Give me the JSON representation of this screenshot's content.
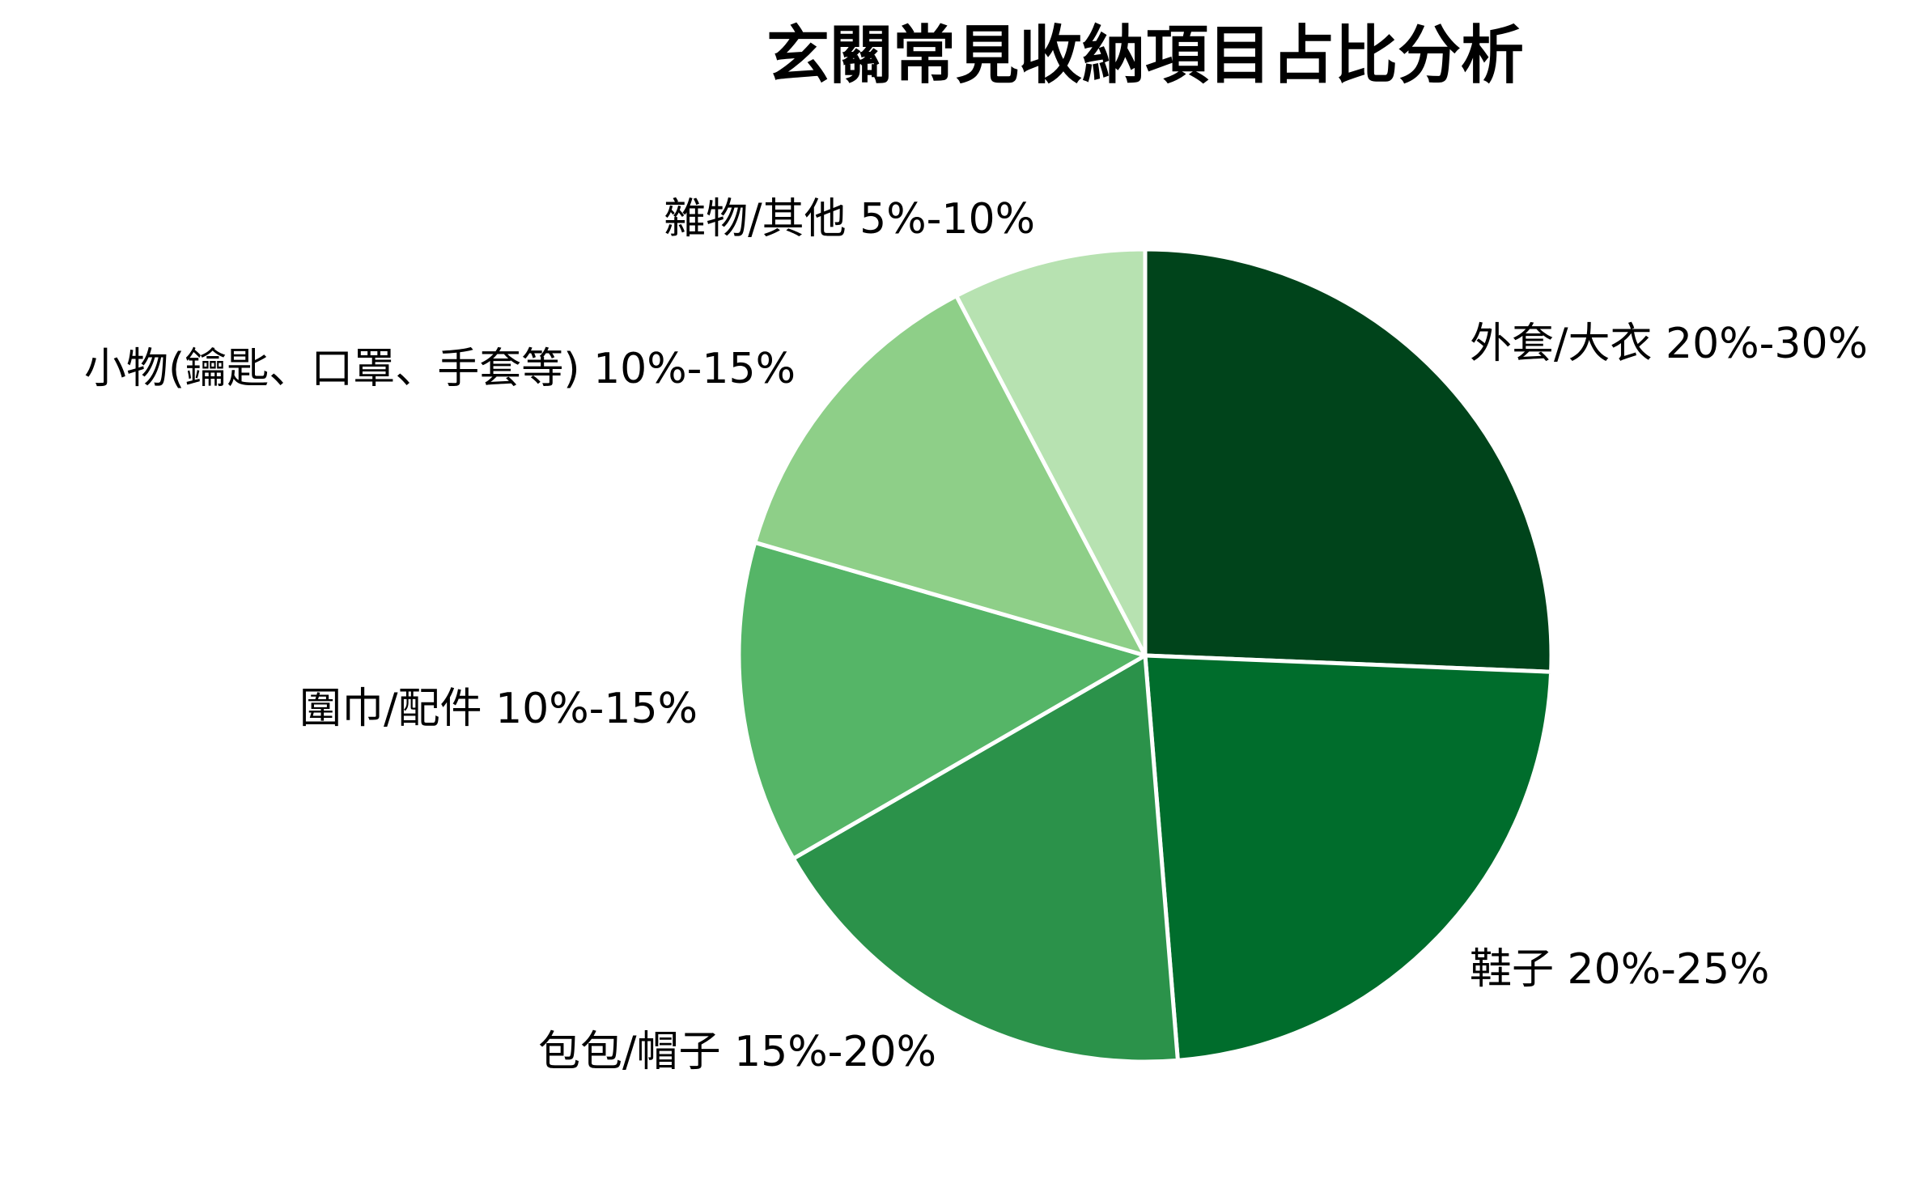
{
  "chart_data": {
    "type": "pie",
    "title": "玄關常見收納項目占比分析",
    "start_angle": 90,
    "direction": "clockwise",
    "slices": [
      {
        "label": "外套/大衣",
        "range": "20%-30%",
        "value": 25.0,
        "color": "#00441b"
      },
      {
        "label": "鞋子",
        "range": "20%-25%",
        "value": 22.5,
        "color": "#006d2c"
      },
      {
        "label": "包包/帽子",
        "range": "15%-20%",
        "value": 17.5,
        "color": "#2b924a"
      },
      {
        "label": "圍巾/配件",
        "range": "10%-15%",
        "value": 12.5,
        "color": "#55b567"
      },
      {
        "label": "小物(鑰匙、口罩、手套等)",
        "range": "10%-15%",
        "value": 12.5,
        "color": "#8ecf88"
      },
      {
        "label": "雜物/其他",
        "range": "5%-10%",
        "value": 7.5,
        "color": "#b7e2b1"
      }
    ],
    "labels_text": [
      "外套/大衣 20%-30%",
      "鞋子 20%-25%",
      "包包/帽子 15%-20%",
      "圍巾/配件 10%-15%",
      "小物(鑰匙、口罩、手套等) 10%-15%",
      "雜物/其他 5%-10%"
    ],
    "legend": "none (labels placed beside slices)"
  }
}
